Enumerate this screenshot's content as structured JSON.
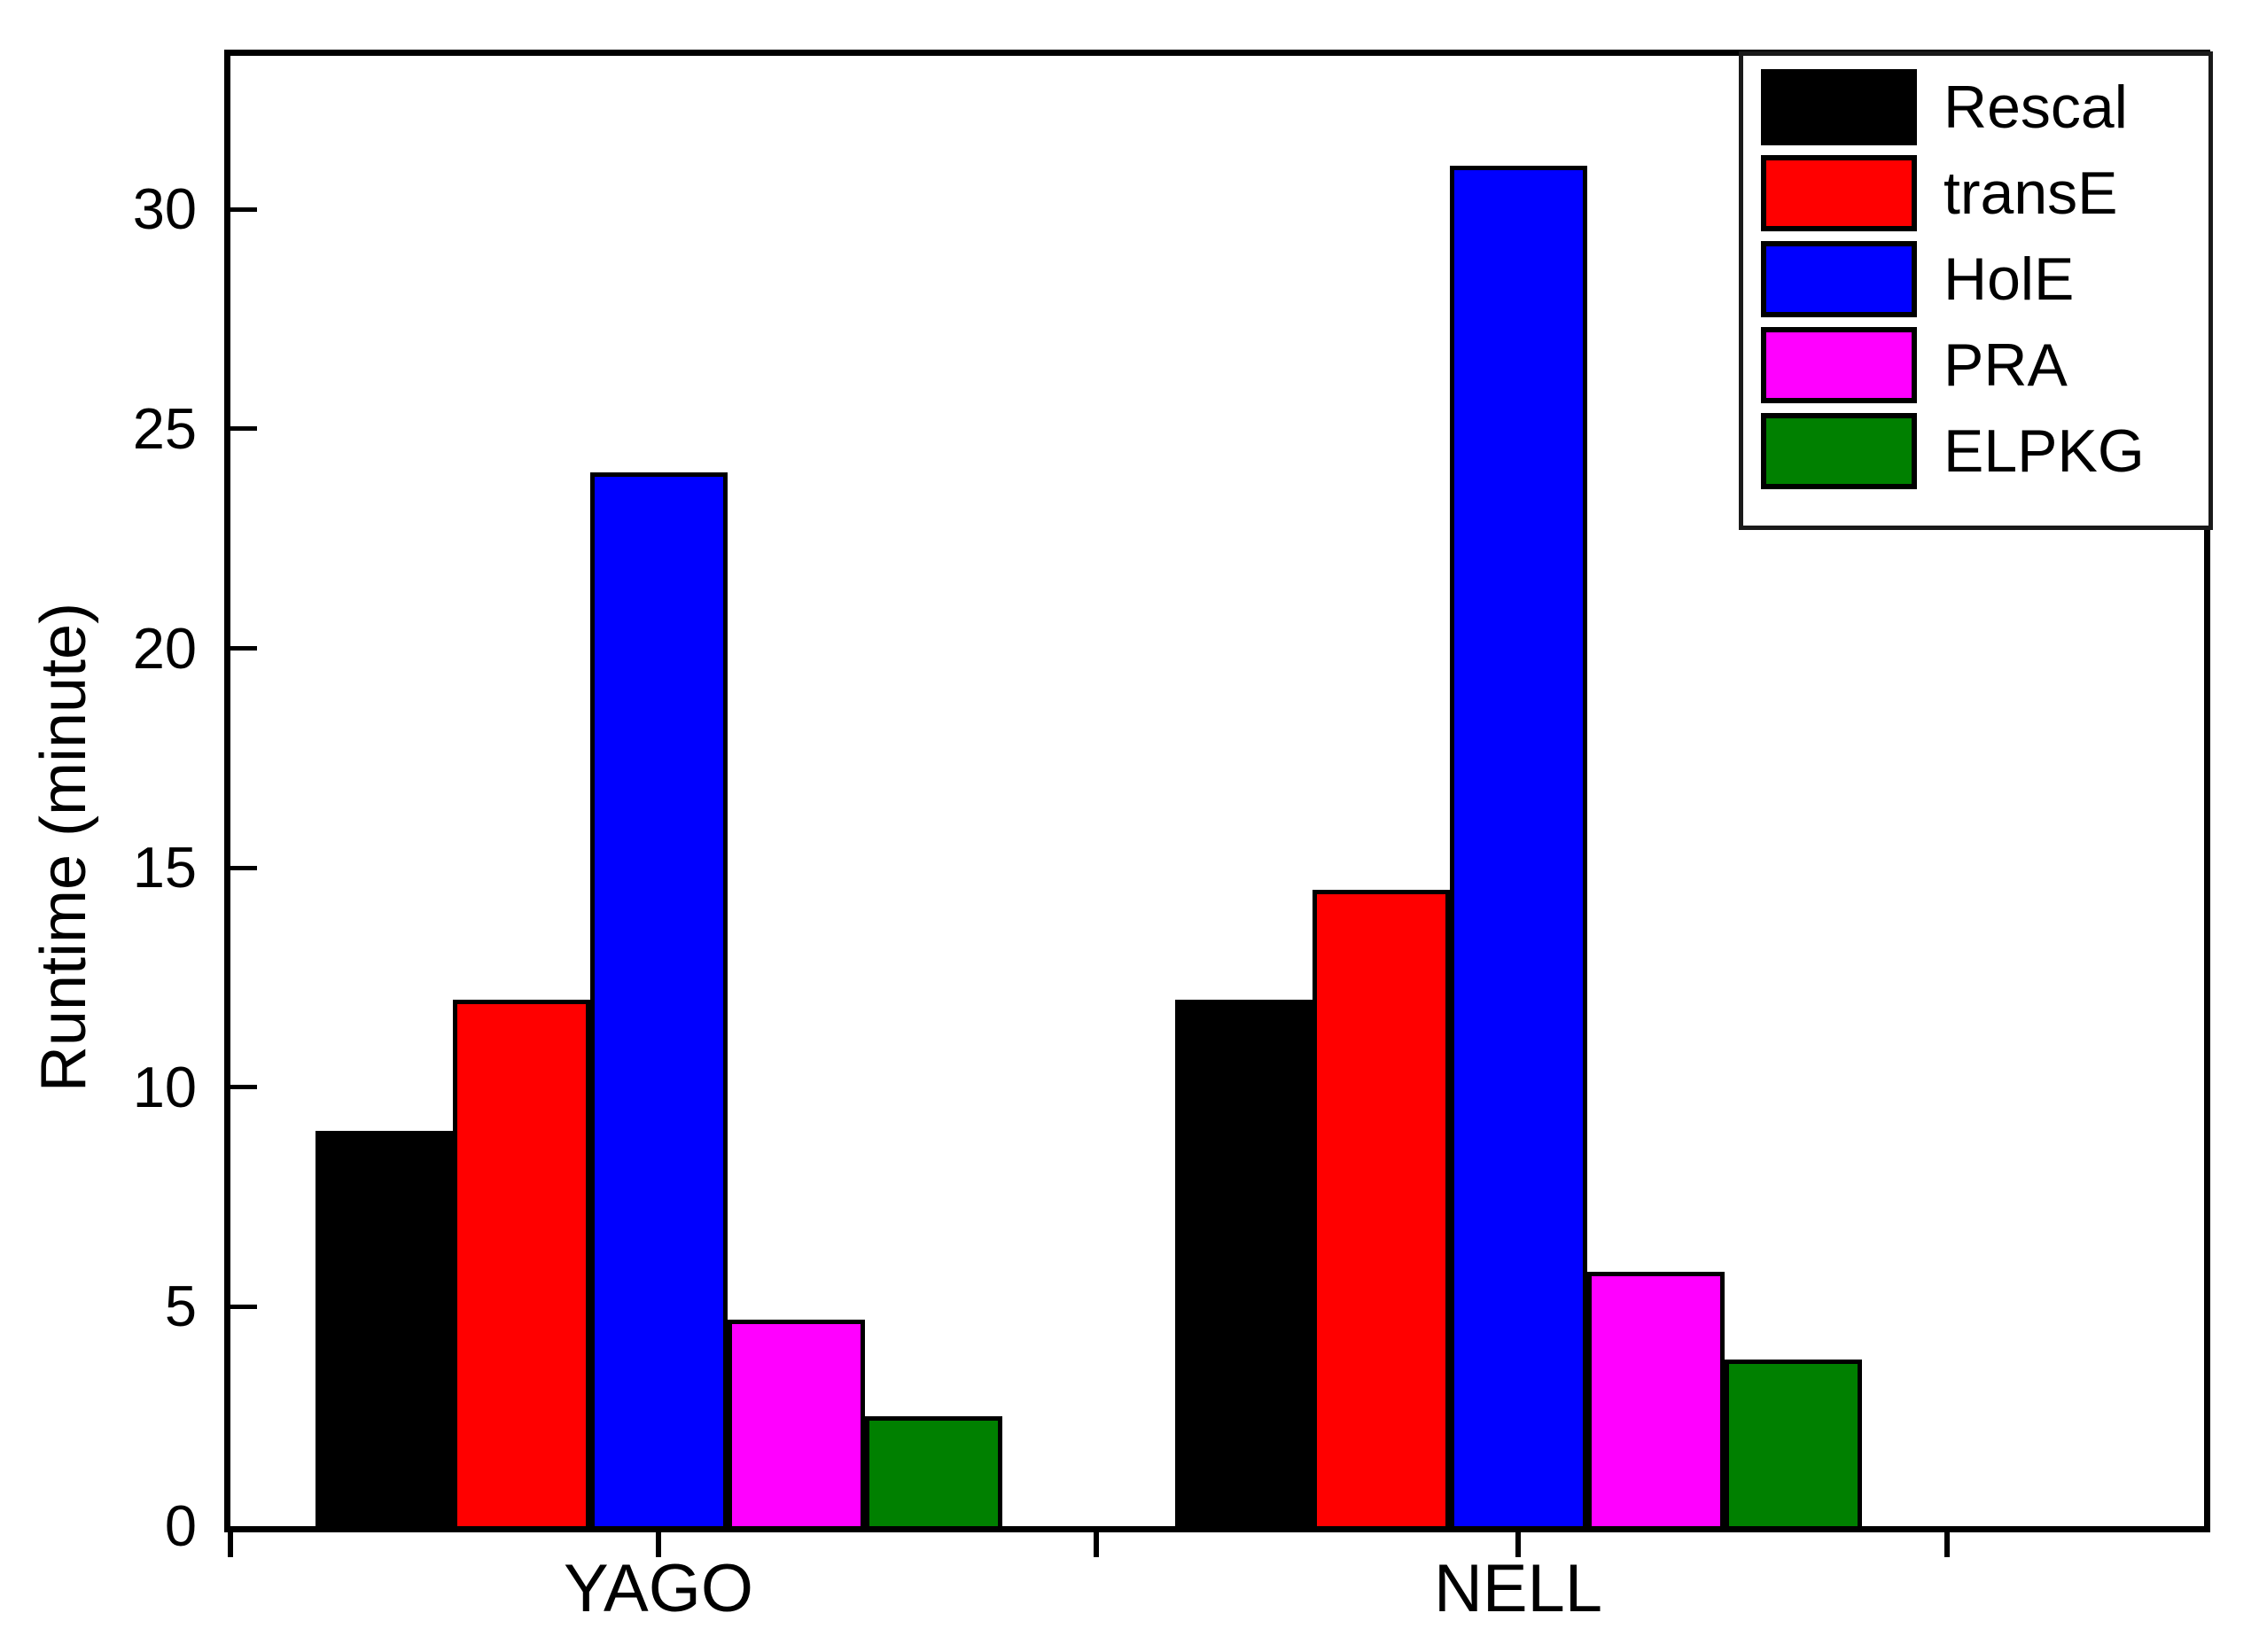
{
  "figure": {
    "description": "Grouped bar chart comparing runtime of five methods on two datasets"
  },
  "chart_data": {
    "type": "bar",
    "title": "",
    "xlabel": "",
    "ylabel": "Runtime (minute)",
    "categories": [
      "YAGO",
      "NELL"
    ],
    "series": [
      {
        "name": "Rescal",
        "color": "#000000",
        "values": [
          9,
          12
        ]
      },
      {
        "name": "transE",
        "color": "#ff0000",
        "values": [
          12,
          14.5
        ]
      },
      {
        "name": "HolE",
        "color": "#0000ff",
        "values": [
          24,
          31
        ]
      },
      {
        "name": "PRA",
        "color": "#ff00ff",
        "values": [
          4.7,
          5.8
        ]
      },
      {
        "name": "ELPKG",
        "color": "#008000",
        "values": [
          2.5,
          3.8
        ]
      }
    ],
    "ylim": [
      0,
      33.5
    ],
    "yticks": [
      0,
      5,
      10,
      15,
      20,
      25,
      30
    ],
    "grid": false,
    "legend_position": "top-right",
    "legend_entries": [
      "Rescal",
      "transE",
      "HolE",
      "PRA",
      "ELPKG"
    ]
  }
}
